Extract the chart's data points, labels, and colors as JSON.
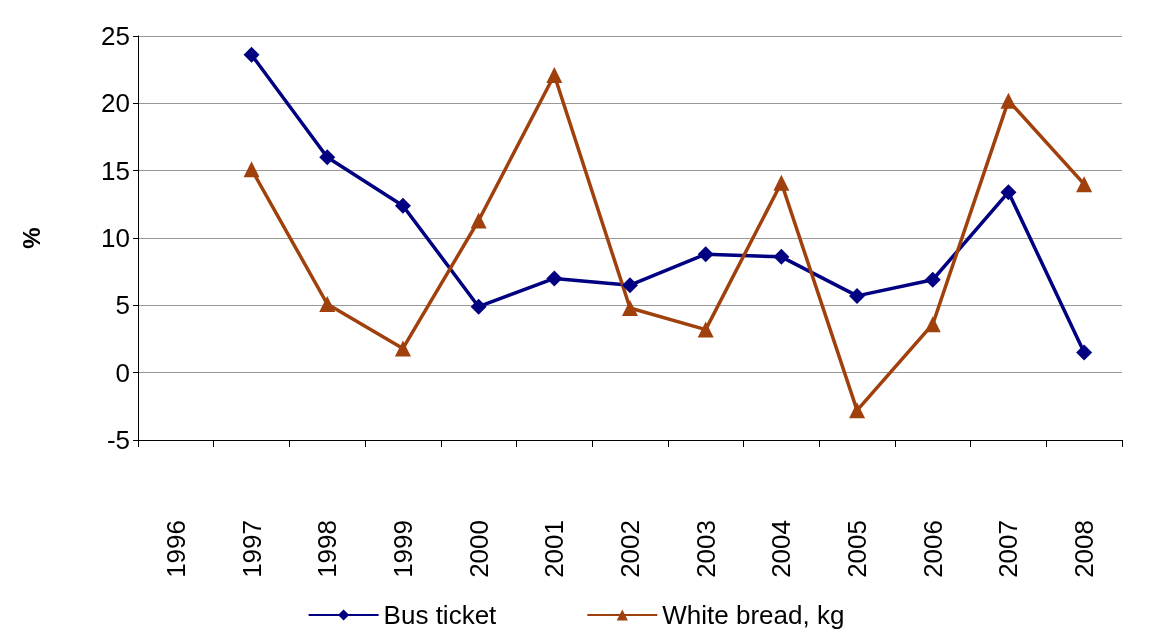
{
  "chart_data": {
    "type": "line",
    "ylabel": "%",
    "categories": [
      "1996",
      "1997",
      "1998",
      "1999",
      "2000",
      "2001",
      "2002",
      "2003",
      "2004",
      "2005",
      "2006",
      "2007",
      "2008"
    ],
    "series": [
      {
        "name": "Bus ticket",
        "color": "#000080",
        "marker": "diamond",
        "values": [
          null,
          23.6,
          16.0,
          12.4,
          4.9,
          7.0,
          6.5,
          8.8,
          8.6,
          5.7,
          6.9,
          13.4,
          1.5
        ]
      },
      {
        "name": "White bread, kg",
        "color": "#a0410d",
        "marker": "triangle",
        "values": [
          null,
          15.1,
          5.1,
          1.8,
          11.3,
          22.1,
          4.8,
          3.2,
          14.1,
          -2.8,
          3.6,
          20.2,
          14.0
        ]
      }
    ],
    "ylim": [
      -5,
      25
    ],
    "yticks": [
      -5,
      0,
      5,
      10,
      15,
      20,
      25
    ],
    "grid": "y",
    "legend": "bottom"
  }
}
